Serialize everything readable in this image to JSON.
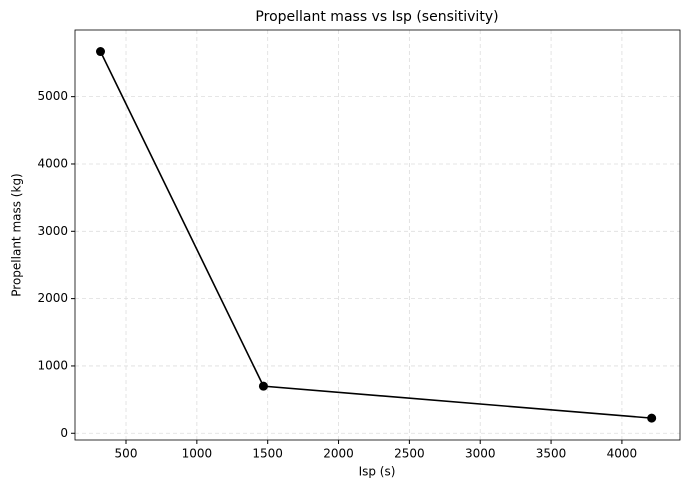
{
  "chart_data": {
    "type": "line",
    "title": "Propellant mass vs Isp (sensitivity)",
    "x_label": "Isp (s)",
    "y_label": "Propellant mass (kg)",
    "x": [
      320,
      1470,
      4210
    ],
    "series": [
      {
        "name": "Propellant mass",
        "color": "#000000",
        "values": [
          5670,
          700,
          225
        ]
      }
    ],
    "xlim": [
      140,
      4410
    ],
    "ylim": [
      -100,
      5990
    ],
    "xticks": [
      500,
      1000,
      1500,
      2000,
      2500,
      3000,
      3500,
      4000
    ],
    "yticks": [
      0,
      1000,
      2000,
      3000,
      4000,
      5000
    ],
    "grid": true
  }
}
